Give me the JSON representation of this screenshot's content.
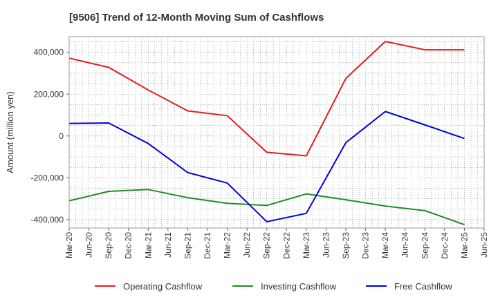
{
  "chart_data": {
    "type": "line",
    "title": "[9506]  Trend of 12-Month Moving Sum of Cashflows",
    "xlabel": "",
    "ylabel": "Amount (million yen)",
    "x_ticks": [
      "Mar-20",
      "Jun-20",
      "Sep-20",
      "Dec-20",
      "Mar-21",
      "Jun-21",
      "Sep-21",
      "Dec-21",
      "Mar-22",
      "Jun-22",
      "Sep-22",
      "Dec-22",
      "Mar-23",
      "Jun-23",
      "Sep-23",
      "Dec-23",
      "Mar-24",
      "Jun-24",
      "Sep-24",
      "Dec-24",
      "Mar-25",
      "Jun-25"
    ],
    "y_ticks": [
      400000,
      200000,
      0,
      -200000,
      -400000
    ],
    "y_tick_labels": [
      "400,000",
      "200,000",
      "0",
      "-200,000",
      "-400,000"
    ],
    "ylim": [
      -440000,
      475000
    ],
    "grid": true,
    "legend_position": "bottom",
    "x": [
      "Mar-20",
      "Sep-20",
      "Mar-21",
      "Sep-21",
      "Mar-22",
      "Sep-22",
      "Mar-23",
      "Sep-23",
      "Mar-24",
      "Sep-24",
      "Mar-25"
    ],
    "series": [
      {
        "name": "Operating Cashflow",
        "color": "#e31a1c",
        "values": [
          372000,
          328000,
          220000,
          120000,
          97000,
          -78000,
          -95000,
          275000,
          452000,
          412000,
          412000
        ]
      },
      {
        "name": "Investing Cashflow",
        "color": "#228b22",
        "values": [
          -310000,
          -265000,
          -256000,
          -295000,
          -322000,
          -332000,
          -277000,
          -305000,
          -335000,
          -357000,
          -424000
        ]
      },
      {
        "name": "Free Cashflow",
        "color": "#0000dd",
        "values": [
          60000,
          62000,
          -36000,
          -175000,
          -225000,
          -410000,
          -370000,
          -32000,
          117000,
          53000,
          -12000
        ]
      }
    ]
  }
}
